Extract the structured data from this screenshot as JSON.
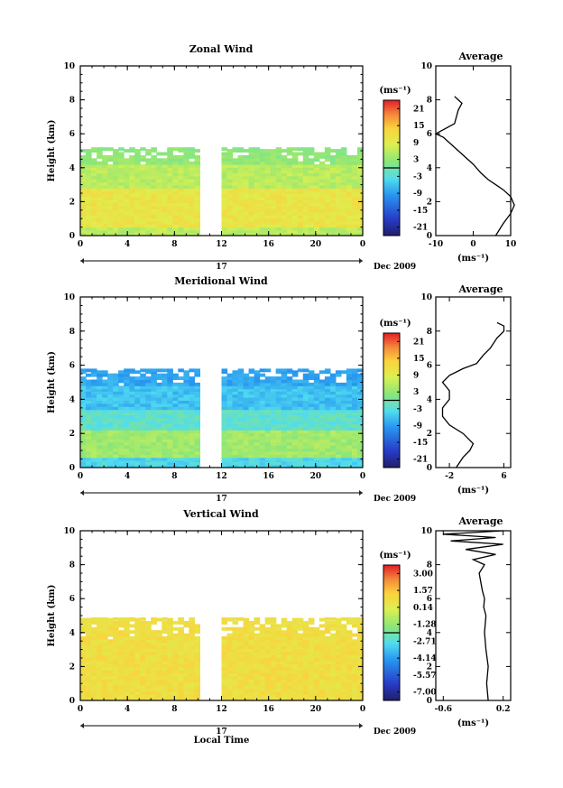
{
  "chart_data": [
    {
      "type": "heatmap",
      "title": "Zonal Wind",
      "xlabel": "",
      "ylabel": "Height (km)",
      "xlim": [
        0,
        24
      ],
      "ylim": [
        0,
        10
      ],
      "x_ticks": [
        "0",
        "4",
        "8",
        "12",
        "16",
        "20",
        "0"
      ],
      "y_ticks": [
        "0",
        "2",
        "4",
        "6",
        "8",
        "10"
      ],
      "date_label": "17",
      "month_label": "Dec 2009",
      "colorbar": {
        "unit": "(ms⁻¹)",
        "ticks": [
          "21",
          "15",
          "9",
          "3",
          "-3",
          "-9",
          "-15",
          "-21"
        ],
        "range": [
          -24,
          24
        ]
      },
      "layers": [
        {
          "y0": 0.0,
          "y1": 0.5,
          "value": 6
        },
        {
          "y0": 0.5,
          "y1": 2.8,
          "value": 11
        },
        {
          "y0": 2.8,
          "y1": 4.2,
          "value": 6
        },
        {
          "y0": 4.2,
          "y1": 5.2,
          "value": 3
        }
      ],
      "gap_hours": [
        10.2,
        11.7
      ],
      "average": {
        "title": "Average",
        "xlabel": "(ms⁻¹)",
        "xlim": [
          -10,
          10
        ],
        "x_ticks": [
          "-10",
          "0",
          "10"
        ],
        "y_ticks": [
          "0",
          "2",
          "4",
          "6",
          "8",
          "10"
        ],
        "x": [
          6,
          8,
          10,
          11,
          10,
          8,
          6,
          4,
          2,
          0,
          -2,
          -4,
          -6,
          -8,
          -10,
          -5,
          -4,
          -3,
          -4,
          -5
        ],
        "y": [
          0,
          0.7,
          1.3,
          1.8,
          2.3,
          2.7,
          3.0,
          3.3,
          3.7,
          4.2,
          4.6,
          5.0,
          5.4,
          5.8,
          6.0,
          6.6,
          7.4,
          7.8,
          8.0,
          8.2
        ]
      }
    },
    {
      "type": "heatmap",
      "title": "Meridional Wind",
      "xlabel": "",
      "ylabel": "Height (km)",
      "xlim": [
        0,
        24
      ],
      "ylim": [
        0,
        10
      ],
      "x_ticks": [
        "0",
        "4",
        "8",
        "12",
        "16",
        "20",
        "0"
      ],
      "y_ticks": [
        "0",
        "2",
        "4",
        "6",
        "8",
        "10"
      ],
      "date_label": "17",
      "month_label": "Dec 2009",
      "colorbar": {
        "unit": "(ms⁻¹)",
        "ticks": [
          "21",
          "15",
          "9",
          "3",
          "-3",
          "-9",
          "-15",
          "-21"
        ],
        "range": [
          -24,
          24
        ]
      },
      "layers": [
        {
          "y0": 0.0,
          "y1": 0.6,
          "value": -4
        },
        {
          "y0": 0.6,
          "y1": 2.2,
          "value": 4
        },
        {
          "y0": 2.2,
          "y1": 3.4,
          "value": -2
        },
        {
          "y0": 3.4,
          "y1": 4.8,
          "value": -6
        },
        {
          "y0": 4.8,
          "y1": 5.8,
          "value": -8
        }
      ],
      "gap_hours": [
        10.2,
        11.7
      ],
      "average": {
        "title": "Average",
        "xlabel": "(ms⁻¹)",
        "xlim": [
          -4,
          7
        ],
        "x_ticks": [
          "-2",
          "6"
        ],
        "y_ticks": [
          "0",
          "2",
          "4",
          "6",
          "8",
          "10"
        ],
        "x": [
          -1,
          0,
          1,
          1.5,
          0,
          -2,
          -3,
          -3,
          -2,
          -2,
          -3,
          -2,
          0,
          2,
          3,
          4,
          5,
          6,
          6,
          5
        ],
        "y": [
          0,
          0.6,
          1.0,
          1.4,
          2.0,
          2.5,
          3.0,
          3.5,
          4.0,
          4.5,
          5.0,
          5.4,
          5.8,
          6.1,
          6.6,
          7.0,
          7.6,
          8.0,
          8.3,
          8.5
        ]
      }
    },
    {
      "type": "heatmap",
      "title": "Vertical Wind",
      "xlabel": "Local Time",
      "ylabel": "Height (km)",
      "xlim": [
        0,
        24
      ],
      "ylim": [
        0,
        10
      ],
      "x_ticks": [
        "0",
        "4",
        "8",
        "12",
        "16",
        "20",
        "0"
      ],
      "y_ticks": [
        "0",
        "2",
        "4",
        "6",
        "8",
        "10"
      ],
      "date_label": "17",
      "month_label": "Dec 2009",
      "colorbar": {
        "unit": "(ms⁻¹)",
        "ticks": [
          "3.00",
          "1.57",
          "0.14",
          "-1.28",
          "-2.71",
          "-4.14",
          "-5.57",
          "-7.00"
        ],
        "range": [
          -7.7,
          3.7
        ]
      },
      "layers": [
        {
          "y0": 0.0,
          "y1": 3.6,
          "value": 0.9
        },
        {
          "y0": 3.6,
          "y1": 4.9,
          "value": 1.0
        }
      ],
      "gap_hours": [
        10.2,
        11.7
      ],
      "average": {
        "title": "Average",
        "xlabel": "(ms⁻¹)",
        "xlim": [
          -0.7,
          0.3
        ],
        "x_ticks": [
          "-0.6",
          "0.2"
        ],
        "y_ticks": [
          "0",
          "2",
          "4",
          "6",
          "8",
          "10"
        ],
        "x": [
          0.0,
          -0.02,
          0.0,
          -0.03,
          -0.05,
          -0.03,
          -0.06,
          -0.05,
          -0.08,
          -0.12,
          -0.05,
          -0.2,
          0.1,
          -0.3,
          0.2,
          -0.5,
          0.1,
          -0.6,
          0.2
        ],
        "y": [
          0,
          1,
          2,
          3,
          4,
          5,
          5.5,
          6,
          6.5,
          7.5,
          8.0,
          8.3,
          8.6,
          8.9,
          9.2,
          9.4,
          9.6,
          9.8,
          10
        ]
      }
    }
  ]
}
